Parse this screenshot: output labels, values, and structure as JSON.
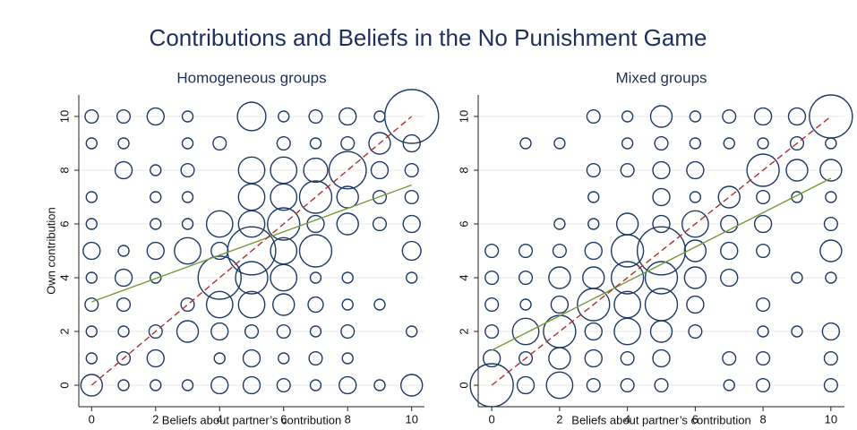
{
  "title": "Contributions and Beliefs in the No Punishment Game",
  "chart_data": [
    {
      "type": "scatter",
      "subtitle": "Homogeneous groups",
      "xlabel": "Beliefs about partner’s contribution",
      "ylabel": "Own contribution",
      "xlim": [
        -0.4,
        10.4
      ],
      "ylim": [
        -0.8,
        10.8
      ],
      "xticks": [
        0,
        2,
        4,
        6,
        8,
        10
      ],
      "yticks": [
        0,
        2,
        4,
        6,
        8,
        10
      ],
      "grid": true,
      "color": "#1f3a68",
      "x": [
        0,
        1,
        2,
        3,
        5,
        6,
        7,
        8,
        9,
        10,
        0,
        1,
        3,
        4,
        6,
        7,
        8,
        9,
        10,
        1,
        2,
        3,
        5,
        6,
        7,
        8,
        9,
        10,
        0,
        2,
        3,
        5,
        6,
        7,
        8,
        9,
        10,
        0,
        2,
        3,
        4,
        5,
        6,
        7,
        8,
        9,
        10,
        0,
        1,
        2,
        3,
        4,
        5,
        6,
        7,
        10,
        0,
        1,
        2,
        4,
        5,
        6,
        7,
        8,
        10,
        0,
        1,
        3,
        4,
        5,
        6,
        7,
        8,
        9,
        0,
        1,
        2,
        3,
        4,
        5,
        6,
        7,
        8,
        10,
        0,
        1,
        2,
        4,
        5,
        6,
        7,
        8,
        0,
        1,
        2,
        3,
        4,
        5,
        6,
        7,
        8,
        9,
        10
      ],
      "values": [
        10,
        10,
        10,
        10,
        10,
        10,
        10,
        10,
        10,
        10,
        9,
        9,
        9,
        9,
        9,
        9,
        9,
        9,
        9,
        8,
        8,
        8,
        8,
        8,
        8,
        8,
        8,
        8,
        7,
        7,
        7,
        7,
        7,
        7,
        7,
        7,
        7,
        6,
        6,
        6,
        6,
        6,
        6,
        6,
        6,
        6,
        6,
        5,
        5,
        5,
        5,
        5,
        5,
        5,
        5,
        5,
        4,
        4,
        4,
        4,
        4,
        4,
        4,
        4,
        4,
        3,
        3,
        3,
        3,
        3,
        3,
        3,
        3,
        3,
        2,
        2,
        2,
        2,
        2,
        2,
        2,
        2,
        2,
        2,
        1,
        1,
        1,
        1,
        1,
        1,
        1,
        1,
        0,
        0,
        0,
        0,
        0,
        0,
        0,
        0,
        0,
        0,
        0
      ],
      "sizes": [
        1.5,
        1.5,
        2.5,
        1,
        7,
        1,
        1.5,
        2.5,
        1,
        25,
        1,
        1,
        1,
        1.5,
        1.5,
        1,
        1.5,
        4,
        2.5,
        2.5,
        1,
        1.5,
        6,
        6,
        5,
        12,
        2.5,
        1.5,
        1,
        1,
        1,
        6,
        6,
        9,
        4,
        1.5,
        1.5,
        1,
        1,
        1,
        6,
        6,
        9,
        2.5,
        4,
        1.5,
        2.5,
        2.5,
        1,
        2.5,
        6,
        2.5,
        20,
        6,
        9,
        3,
        1,
        2.5,
        1,
        16,
        9,
        6,
        1,
        1,
        1,
        1.5,
        1.5,
        1.5,
        6,
        6,
        4,
        2,
        1,
        1,
        1,
        1,
        1.5,
        4,
        2.5,
        1.5,
        1.5,
        1,
        1.5,
        1,
        1,
        1.5,
        2.5,
        1,
        2.5,
        1,
        1.5,
        1,
        4,
        1,
        1,
        1,
        2.5,
        2.5,
        1.5,
        1,
        2.5,
        1,
        4
      ],
      "lines": [
        {
          "x": [
            0,
            10
          ],
          "values": [
            3.1,
            7.45
          ],
          "color": "#7a9a3a",
          "dashed": false
        },
        {
          "x": [
            0,
            10
          ],
          "values": [
            0,
            10
          ],
          "color": "#b03030",
          "dashed": true
        }
      ]
    },
    {
      "type": "scatter",
      "subtitle": "Mixed groups",
      "xlabel": "Beliefs about partner’s contribution",
      "xlim": [
        -0.4,
        10.4
      ],
      "ylim": [
        -0.8,
        10.8
      ],
      "xticks": [
        0,
        2,
        4,
        6,
        8,
        10
      ],
      "yticks": [
        0,
        2,
        4,
        6,
        8,
        10
      ],
      "grid": true,
      "color": "#1f3a68",
      "x": [
        3,
        4,
        5,
        6,
        7,
        8,
        9,
        10,
        1,
        2,
        4,
        5,
        6,
        7,
        8,
        9,
        10,
        3,
        4,
        5,
        6,
        8,
        9,
        10,
        3,
        5,
        6,
        7,
        8,
        9,
        10,
        2,
        3,
        4,
        5,
        6,
        7,
        8,
        10,
        0,
        1,
        2,
        3,
        4,
        5,
        6,
        7,
        8,
        10,
        0,
        1,
        2,
        3,
        4,
        5,
        6,
        7,
        9,
        10,
        0,
        1,
        2,
        3,
        4,
        5,
        6,
        8,
        0,
        1,
        2,
        3,
        4,
        5,
        6,
        8,
        9,
        10,
        0,
        1,
        2,
        3,
        4,
        5,
        7,
        8,
        10,
        0,
        1,
        2,
        3,
        4,
        5,
        7,
        8,
        10
      ],
      "values": [
        10,
        10,
        10,
        10,
        10,
        10,
        10,
        10,
        9,
        9,
        9,
        9,
        9,
        9,
        9,
        9,
        9,
        8,
        8,
        8,
        8,
        8,
        8,
        8,
        7,
        7,
        7,
        7,
        7,
        7,
        7,
        6,
        6,
        6,
        6,
        6,
        6,
        6,
        6,
        5,
        5,
        5,
        5,
        5,
        5,
        5,
        5,
        5,
        5,
        4,
        4,
        4,
        4,
        4,
        4,
        4,
        4,
        4,
        4,
        3,
        3,
        3,
        3,
        3,
        3,
        3,
        3,
        2,
        2,
        2,
        2,
        2,
        2,
        2,
        2,
        2,
        2,
        1,
        1,
        1,
        1,
        1,
        1,
        1,
        1,
        1,
        0,
        0,
        0,
        0,
        0,
        0,
        0,
        0,
        0
      ],
      "sizes": [
        1.5,
        1,
        4,
        1,
        1.5,
        2.5,
        2.5,
        16,
        1,
        1,
        1,
        1.5,
        1,
        1,
        1,
        1.5,
        1,
        1.5,
        1.5,
        2.5,
        2.5,
        9,
        4,
        4,
        1,
        2.5,
        1,
        4,
        1.5,
        1,
        1,
        1,
        1,
        4,
        2.5,
        6,
        2.5,
        2.5,
        1.5,
        1.5,
        1.5,
        1.5,
        2.5,
        9,
        20,
        4,
        2.5,
        1.5,
        4,
        1.5,
        1.5,
        4,
        4,
        9,
        9,
        4,
        2.5,
        1,
        1,
        1.5,
        1,
        2.5,
        9,
        6,
        9,
        2.5,
        1.5,
        1.5,
        6,
        9,
        2.5,
        6,
        4,
        1.5,
        1,
        1,
        2.5,
        2.5,
        1.5,
        4,
        2.5,
        1.5,
        2.5,
        1.5,
        1.5,
        1.5,
        16,
        2.5,
        6,
        1.5,
        1.5,
        1.5,
        1,
        1.5,
        1.5
      ],
      "lines": [
        {
          "x": [
            0,
            10
          ],
          "values": [
            1.3,
            7.7
          ],
          "color": "#7a9a3a",
          "dashed": false
        },
        {
          "x": [
            0,
            10
          ],
          "values": [
            0,
            10
          ],
          "color": "#b03030",
          "dashed": true
        }
      ]
    }
  ]
}
